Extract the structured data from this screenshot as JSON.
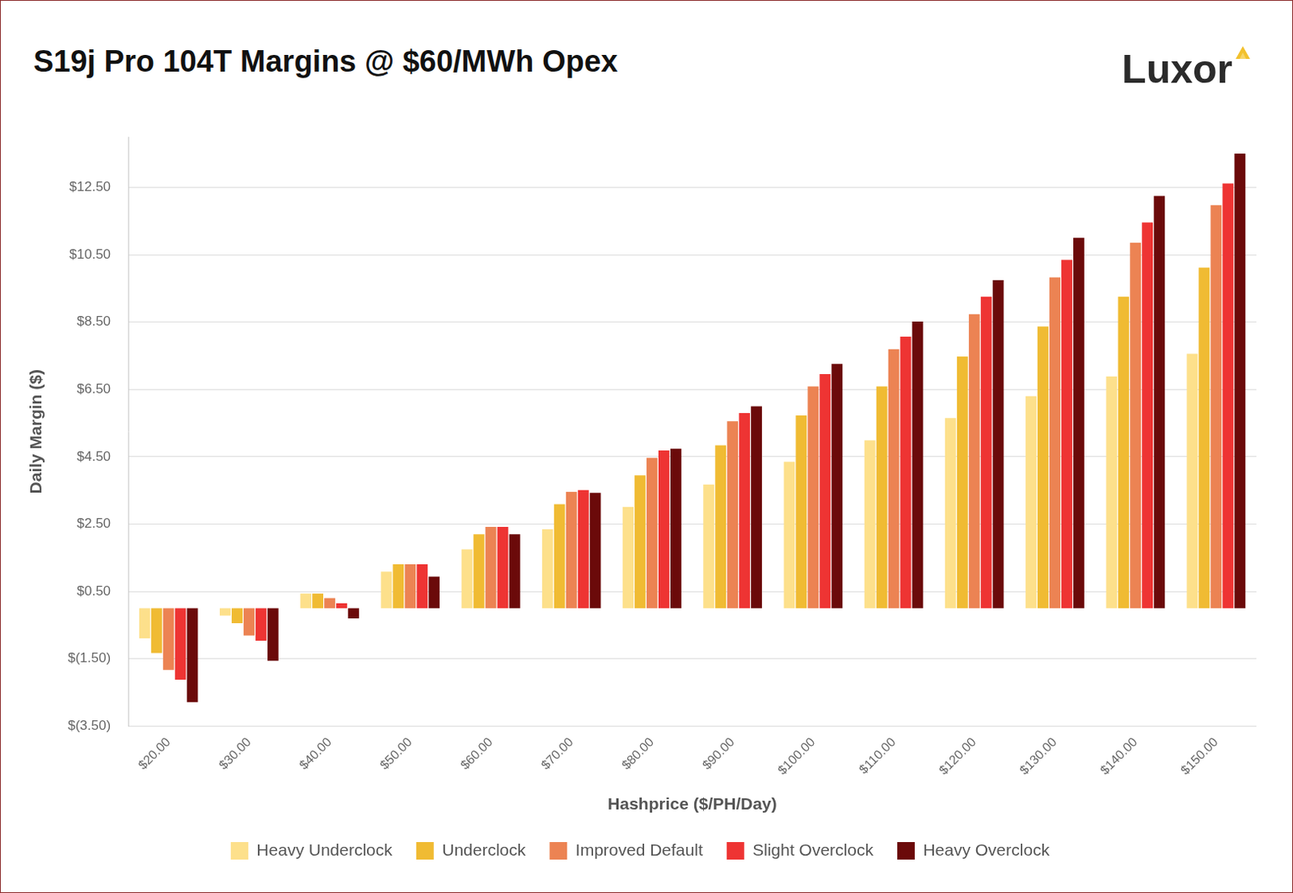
{
  "chart_data": {
    "type": "bar",
    "title": "S19j Pro 104T Margins @ $60/MWh Opex",
    "annotations": [
      "Luxor"
    ],
    "x_label": "Hashprice ($/PH/Day)",
    "y_label": "Daily Margin ($)",
    "categories": [
      "$20.00",
      "$30.00",
      "$40.00",
      "$50.00",
      "$60.00",
      "$70.00",
      "$80.00",
      "$90.00",
      "$100.00",
      "$110.00",
      "$120.00",
      "$130.00",
      "$140.00",
      "$150.00"
    ],
    "series": [
      {
        "name": "Heavy Underclock",
        "color": "#fde08b",
        "values": [
          -0.89,
          -0.22,
          0.44,
          1.09,
          1.75,
          2.35,
          3.01,
          3.68,
          4.35,
          4.99,
          5.65,
          6.3,
          6.89,
          7.56
        ]
      },
      {
        "name": "Underclock",
        "color": "#f0bb33",
        "values": [
          -1.33,
          -0.44,
          0.44,
          1.31,
          2.2,
          3.09,
          3.95,
          4.84,
          5.73,
          6.59,
          7.48,
          8.37,
          9.26,
          10.12
        ]
      },
      {
        "name": "Improved Default",
        "color": "#ec8353",
        "values": [
          -1.83,
          -0.81,
          0.3,
          1.31,
          2.42,
          3.46,
          4.47,
          5.56,
          6.59,
          7.7,
          8.74,
          9.83,
          10.86,
          11.98
        ]
      },
      {
        "name": "Slight Overclock",
        "color": "#ee3433",
        "values": [
          -2.12,
          -0.96,
          0.15,
          1.31,
          2.42,
          3.51,
          4.69,
          5.8,
          6.96,
          8.07,
          9.26,
          10.35,
          11.46,
          12.62
        ]
      },
      {
        "name": "Heavy Overclock",
        "color": "#6b0a0a",
        "values": [
          -2.79,
          -1.56,
          -0.3,
          0.94,
          2.2,
          3.43,
          4.74,
          6.0,
          7.26,
          8.52,
          9.75,
          11.01,
          12.25,
          13.51
        ]
      }
    ],
    "ylim": [
      -3.5,
      14
    ],
    "yticks": [
      {
        "value": -3.5,
        "label": "$(3.50)"
      },
      {
        "value": -1.5,
        "label": "$(1.50)"
      },
      {
        "value": 0.5,
        "label": "$0.50"
      },
      {
        "value": 2.5,
        "label": "$2.50"
      },
      {
        "value": 4.5,
        "label": "$4.50"
      },
      {
        "value": 6.5,
        "label": "$6.50"
      },
      {
        "value": 8.5,
        "label": "$8.50"
      },
      {
        "value": 10.5,
        "label": "$10.50"
      },
      {
        "value": 12.5,
        "label": "$12.50"
      }
    ],
    "grid": true,
    "legend": "bottom"
  }
}
